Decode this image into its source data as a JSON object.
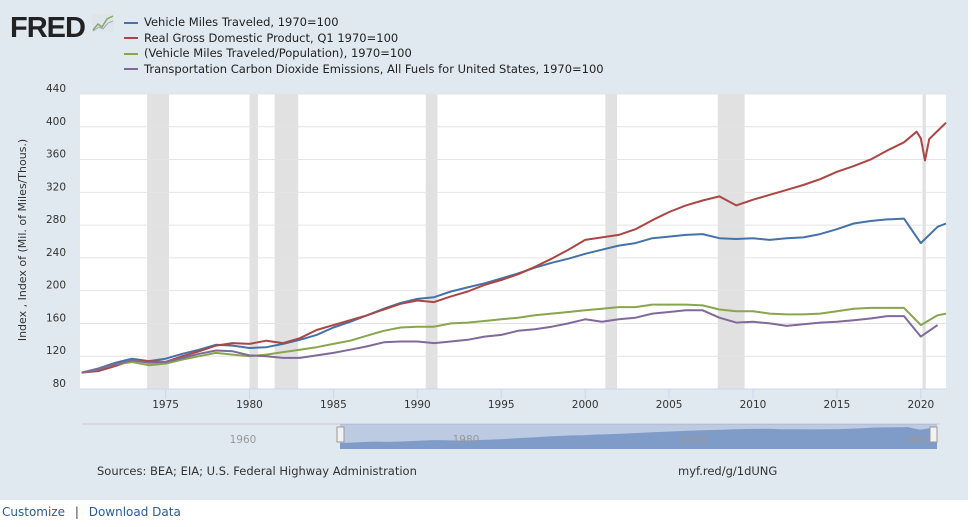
{
  "logo": "FRED",
  "footer": {
    "sources": "Sources: BEA; EIA; U.S. Federal Highway Administration",
    "short_url": "myf.red/g/1dUNG",
    "customize": "Customize",
    "separator": "|",
    "download": "Download Data"
  },
  "navigator": {
    "labels": [
      "1960",
      "1980",
      "2000",
      "2020"
    ]
  },
  "chart_data": {
    "type": "line",
    "ylabel": "Index , Index of (Mil. of Miles/Thous.)",
    "ylim": [
      80,
      440
    ],
    "xlim": [
      1969.9,
      2021.5
    ],
    "yticks": [
      80,
      120,
      160,
      200,
      240,
      280,
      320,
      360,
      400,
      440
    ],
    "xticks": [
      1975,
      1980,
      1985,
      1990,
      1995,
      2000,
      2005,
      2010,
      2015,
      2020
    ],
    "recessions": [
      [
        1973.9,
        1975.2
      ],
      [
        1980.0,
        1980.5
      ],
      [
        1981.5,
        1982.9
      ],
      [
        1990.5,
        1991.2
      ],
      [
        2001.2,
        2001.9
      ],
      [
        2007.9,
        2009.5
      ],
      [
        2020.1,
        2020.3
      ]
    ],
    "series": [
      {
        "name": "Vehicle Miles Traveled, 1970=100",
        "color": "#4572a7",
        "x": [
          1970,
          1971,
          1972,
          1973,
          1974,
          1975,
          1976,
          1977,
          1978,
          1979,
          1980,
          1981,
          1982,
          1983,
          1984,
          1985,
          1986,
          1987,
          1988,
          1989,
          1990,
          1991,
          1992,
          1993,
          1994,
          1995,
          1996,
          1997,
          1998,
          1999,
          2000,
          2001,
          2002,
          2003,
          2004,
          2005,
          2006,
          2007,
          2008,
          2009,
          2010,
          2011,
          2012,
          2013,
          2014,
          2015,
          2016,
          2017,
          2018,
          2019,
          2020,
          2021,
          2021.5
        ],
        "values": [
          100,
          105,
          112,
          117,
          114,
          117,
          123,
          128,
          134,
          133,
          130,
          131,
          135,
          140,
          146,
          155,
          162,
          170,
          178,
          185,
          190,
          192,
          199,
          204,
          209,
          215,
          221,
          228,
          234,
          239,
          245,
          250,
          255,
          258,
          264,
          266,
          268,
          269,
          264,
          263,
          264,
          262,
          264,
          265,
          269,
          275,
          282,
          285,
          287,
          288,
          258,
          278,
          282
        ]
      },
      {
        "name": "Real Gross Domestic Product, Q1 1970=100",
        "color": "#aa4643",
        "x": [
          1970,
          1971,
          1972,
          1973,
          1974,
          1975,
          1976,
          1977,
          1978,
          1979,
          1980,
          1981,
          1982,
          1983,
          1984,
          1985,
          1986,
          1987,
          1988,
          1989,
          1990,
          1991,
          1992,
          1993,
          1994,
          1995,
          1996,
          1997,
          1998,
          1999,
          2000,
          2001,
          2002,
          2003,
          2004,
          2005,
          2006,
          2007,
          2008,
          2009,
          2010,
          2011,
          2012,
          2013,
          2014,
          2015,
          2016,
          2017,
          2018,
          2019,
          2019.75,
          2020,
          2020.25,
          2020.5,
          2021,
          2021.5
        ],
        "values": [
          100,
          102,
          108,
          115,
          114,
          113,
          120,
          126,
          133,
          136,
          135,
          139,
          136,
          142,
          152,
          158,
          164,
          170,
          177,
          184,
          188,
          186,
          193,
          199,
          207,
          213,
          220,
          229,
          239,
          250,
          262,
          265,
          268,
          275,
          286,
          296,
          304,
          310,
          315,
          304,
          311,
          317,
          323,
          329,
          336,
          345,
          352,
          360,
          371,
          381,
          394,
          386,
          359,
          385,
          395,
          405
        ]
      },
      {
        "name": "(Vehicle Miles Traveled/Population), 1970=100",
        "color": "#89a54e",
        "x": [
          1970,
          1971,
          1972,
          1973,
          1974,
          1975,
          1976,
          1977,
          1978,
          1979,
          1980,
          1981,
          1982,
          1983,
          1984,
          1985,
          1986,
          1987,
          1988,
          1989,
          1990,
          1991,
          1992,
          1993,
          1994,
          1995,
          1996,
          1997,
          1998,
          1999,
          2000,
          2001,
          2002,
          2003,
          2004,
          2005,
          2006,
          2007,
          2008,
          2009,
          2010,
          2011,
          2012,
          2013,
          2014,
          2015,
          2016,
          2017,
          2018,
          2019,
          2020,
          2021,
          2021.5
        ],
        "values": [
          100,
          104,
          110,
          113,
          109,
          111,
          116,
          120,
          124,
          122,
          120,
          122,
          125,
          128,
          131,
          135,
          139,
          145,
          151,
          155,
          156,
          156,
          160,
          161,
          163,
          165,
          167,
          170,
          172,
          174,
          176,
          178,
          180,
          180,
          183,
          183,
          183,
          182,
          177,
          175,
          175,
          172,
          171,
          171,
          172,
          175,
          178,
          179,
          179,
          179,
          158,
          170,
          172
        ]
      },
      {
        "name": "Transportation Carbon Dioxide Emissions, All Fuels for United States, 1970=100",
        "color": "#80699b",
        "x": [
          1970,
          1971,
          1972,
          1973,
          1974,
          1975,
          1976,
          1977,
          1978,
          1979,
          1980,
          1981,
          1982,
          1983,
          1984,
          1985,
          1986,
          1987,
          1988,
          1989,
          1990,
          1991,
          1992,
          1993,
          1994,
          1995,
          1996,
          1997,
          1998,
          1999,
          2000,
          2001,
          2002,
          2003,
          2004,
          2005,
          2006,
          2007,
          2008,
          2009,
          2010,
          2011,
          2012,
          2013,
          2014,
          2015,
          2016,
          2017,
          2018,
          2019,
          2020,
          2021
        ],
        "values": [
          100,
          104,
          110,
          115,
          112,
          113,
          118,
          123,
          127,
          126,
          121,
          120,
          118,
          118,
          121,
          124,
          128,
          132,
          137,
          138,
          138,
          136,
          138,
          140,
          144,
          146,
          151,
          153,
          156,
          160,
          165,
          162,
          165,
          167,
          172,
          174,
          176,
          176,
          167,
          161,
          162,
          160,
          157,
          159,
          161,
          162,
          164,
          166,
          169,
          169,
          144,
          158
        ]
      }
    ]
  }
}
